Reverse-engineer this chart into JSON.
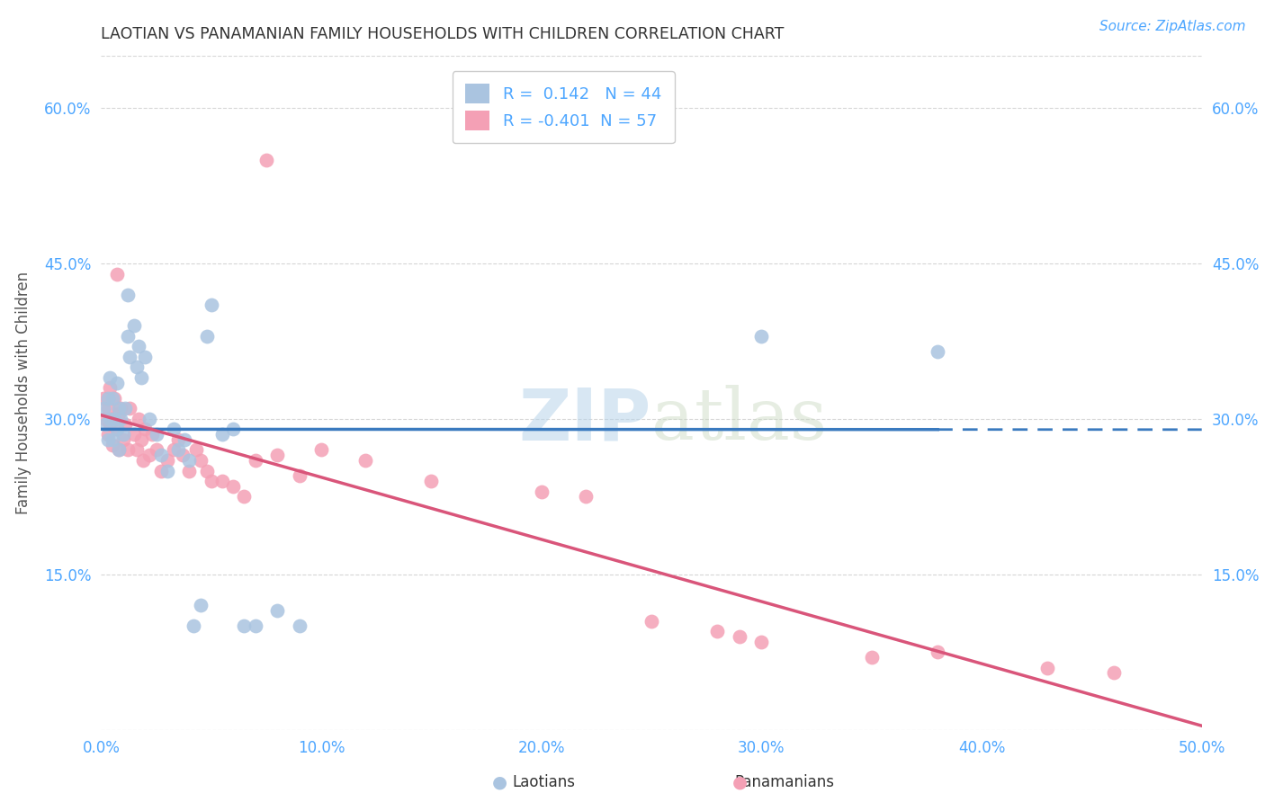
{
  "title": "LAOTIAN VS PANAMANIAN FAMILY HOUSEHOLDS WITH CHILDREN CORRELATION CHART",
  "source": "Source: ZipAtlas.com",
  "ylabel": "Family Households with Children",
  "xlabel_laotians": "Laotians",
  "xlabel_panamanians": "Panamanians",
  "R_laotian": 0.142,
  "N_laotian": 44,
  "R_panamanian": -0.401,
  "N_panamanian": 57,
  "xlim": [
    0.0,
    0.5
  ],
  "ylim": [
    0.0,
    0.65
  ],
  "x_ticks": [
    0.0,
    0.1,
    0.2,
    0.3,
    0.4,
    0.5
  ],
  "x_tick_labels": [
    "0.0%",
    "10.0%",
    "20.0%",
    "30.0%",
    "40.0%",
    "50.0%"
  ],
  "y_ticks": [
    0.0,
    0.15,
    0.3,
    0.45,
    0.6
  ],
  "y_tick_labels": [
    "",
    "15.0%",
    "30.0%",
    "45.0%",
    "60.0%"
  ],
  "color_laotian": "#aac4e0",
  "color_laotian_line": "#3a7abf",
  "color_panamanian": "#f4a0b5",
  "color_panamanian_line": "#d9557a",
  "watermark_zip": "ZIP",
  "watermark_atlas": "atlas",
  "background_color": "#ffffff",
  "grid_color": "#cccccc",
  "laotian_x": [
    0.001,
    0.002,
    0.003,
    0.003,
    0.004,
    0.004,
    0.005,
    0.005,
    0.006,
    0.007,
    0.007,
    0.008,
    0.008,
    0.009,
    0.01,
    0.011,
    0.012,
    0.012,
    0.013,
    0.015,
    0.016,
    0.017,
    0.018,
    0.02,
    0.022,
    0.025,
    0.027,
    0.03,
    0.033,
    0.035,
    0.038,
    0.04,
    0.042,
    0.045,
    0.048,
    0.05,
    0.055,
    0.06,
    0.065,
    0.07,
    0.08,
    0.09,
    0.3,
    0.38
  ],
  "laotian_y": [
    0.31,
    0.295,
    0.28,
    0.32,
    0.3,
    0.34,
    0.28,
    0.32,
    0.3,
    0.29,
    0.335,
    0.31,
    0.27,
    0.3,
    0.285,
    0.31,
    0.38,
    0.42,
    0.36,
    0.39,
    0.35,
    0.37,
    0.34,
    0.36,
    0.3,
    0.285,
    0.265,
    0.25,
    0.29,
    0.27,
    0.28,
    0.26,
    0.1,
    0.12,
    0.38,
    0.41,
    0.285,
    0.29,
    0.1,
    0.1,
    0.115,
    0.1,
    0.38,
    0.365
  ],
  "panamanian_x": [
    0.001,
    0.002,
    0.003,
    0.003,
    0.004,
    0.004,
    0.005,
    0.005,
    0.006,
    0.007,
    0.007,
    0.008,
    0.008,
    0.009,
    0.01,
    0.011,
    0.012,
    0.013,
    0.015,
    0.016,
    0.017,
    0.018,
    0.019,
    0.02,
    0.022,
    0.023,
    0.025,
    0.027,
    0.03,
    0.033,
    0.035,
    0.037,
    0.04,
    0.043,
    0.045,
    0.048,
    0.05,
    0.055,
    0.06,
    0.065,
    0.07,
    0.075,
    0.08,
    0.09,
    0.1,
    0.12,
    0.15,
    0.2,
    0.22,
    0.25,
    0.28,
    0.29,
    0.3,
    0.35,
    0.38,
    0.43,
    0.46
  ],
  "panamanian_y": [
    0.32,
    0.3,
    0.285,
    0.31,
    0.295,
    0.33,
    0.275,
    0.3,
    0.32,
    0.44,
    0.29,
    0.305,
    0.27,
    0.31,
    0.28,
    0.295,
    0.27,
    0.31,
    0.285,
    0.27,
    0.3,
    0.28,
    0.26,
    0.29,
    0.265,
    0.285,
    0.27,
    0.25,
    0.26,
    0.27,
    0.28,
    0.265,
    0.25,
    0.27,
    0.26,
    0.25,
    0.24,
    0.24,
    0.235,
    0.225,
    0.26,
    0.55,
    0.265,
    0.245,
    0.27,
    0.26,
    0.24,
    0.23,
    0.225,
    0.105,
    0.095,
    0.09,
    0.085,
    0.07,
    0.075,
    0.06,
    0.055
  ]
}
